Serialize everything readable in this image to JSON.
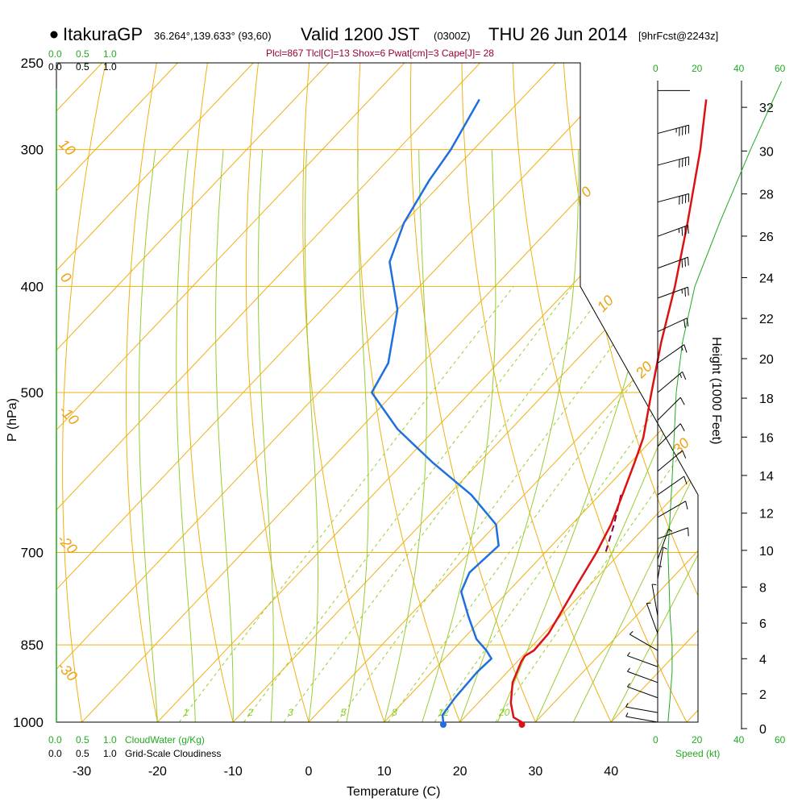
{
  "header": {
    "station": "ItakuraGP",
    "coords": "36.264°,139.633° (93,60)",
    "valid": "Valid 1200 JST",
    "zulu": "(0300Z)",
    "date": "THU 26 Jun 2014",
    "forecast": "[9hrFcst@2243z]",
    "diagnostics": "Plcl=867 Tlcl[C]=13 Shox=6 Pwat[cm]=3 Cape[J]= 28"
  },
  "scales": {
    "cloudwater_ticks": [
      "0.0",
      "0.5",
      "1.0"
    ],
    "cloudiness_ticks": [
      "0.0",
      "0.5",
      "1.0"
    ],
    "cloudwater_label": "CloudWater (g/Kg)",
    "cloudiness_label": "Grid-Scale Cloudiness",
    "speed_ticks": [
      "0",
      "20",
      "40",
      "60"
    ],
    "speed_label": "Speed (kt)"
  },
  "colors": {
    "isotherm": "#f0b010",
    "dry_adiabat": "#f0b010",
    "moist_adiabat": "#99cc33",
    "mixing_ratio": "#99cc33",
    "temperature": "#dd1111",
    "dewpoint": "#1f6fdd",
    "parcel": "#880044",
    "speed": "#22aa22"
  },
  "chart_data": {
    "type": "skew-t",
    "xlabel": "Temperature (C)",
    "ylabel": "P (hPa)",
    "y2label": "Height (1000 Feet)",
    "pressure_ticks": [
      250,
      300,
      400,
      500,
      700,
      850,
      1000
    ],
    "temp_ticks": [
      -30,
      -20,
      -10,
      0,
      10,
      20,
      30,
      40
    ],
    "height_ticks": [
      0,
      2,
      4,
      6,
      8,
      10,
      12,
      14,
      16,
      18,
      20,
      22,
      24,
      26,
      28,
      30,
      32
    ],
    "isotherm_labels": [
      {
        "text": "10",
        "t": -40,
        "p": 300
      },
      {
        "text": "0",
        "t": -40,
        "p": 400
      },
      {
        "text": "-10",
        "t": -40,
        "p": 520
      },
      {
        "text": "-20",
        "t": -40,
        "p": 680
      },
      {
        "text": "-30",
        "t": -40,
        "p": 880
      }
    ],
    "right_temp_labels": [
      "0",
      "10",
      "20",
      "30"
    ],
    "mixing_ratio_labels": [
      "1",
      "2",
      "3",
      "5",
      "8",
      "12",
      "20"
    ],
    "mixing_ratios": [
      1,
      2,
      3,
      5,
      8,
      12,
      20
    ],
    "temperature": [
      {
        "p": 1000,
        "t": 28.2
      },
      {
        "p": 990,
        "t": 26.5
      },
      {
        "p": 960,
        "t": 24.3
      },
      {
        "p": 920,
        "t": 22.0
      },
      {
        "p": 880,
        "t": 20.5
      },
      {
        "p": 870,
        "t": 20.3
      },
      {
        "p": 860,
        "t": 20.8
      },
      {
        "p": 830,
        "t": 20.6
      },
      {
        "p": 800,
        "t": 19.8
      },
      {
        "p": 750,
        "t": 18.3
      },
      {
        "p": 700,
        "t": 16.8
      },
      {
        "p": 660,
        "t": 15.2
      },
      {
        "p": 620,
        "t": 13.0
      },
      {
        "p": 580,
        "t": 10.6
      },
      {
        "p": 550,
        "t": 8.6
      },
      {
        "p": 500,
        "t": 4.0
      },
      {
        "p": 450,
        "t": -1.0
      },
      {
        "p": 400,
        "t": -6.2
      },
      {
        "p": 350,
        "t": -12.5
      },
      {
        "p": 300,
        "t": -20.0
      },
      {
        "p": 270,
        "t": -25.5
      }
    ],
    "dewpoint": [
      {
        "p": 1000,
        "t": 17.8
      },
      {
        "p": 985,
        "t": 16.8
      },
      {
        "p": 950,
        "t": 16.3
      },
      {
        "p": 900,
        "t": 16.0
      },
      {
        "p": 875,
        "t": 16.2
      },
      {
        "p": 860,
        "t": 14.5
      },
      {
        "p": 840,
        "t": 11.8
      },
      {
        "p": 800,
        "t": 7.8
      },
      {
        "p": 760,
        "t": 3.8
      },
      {
        "p": 730,
        "t": 2.5
      },
      {
        "p": 690,
        "t": 3.0
      },
      {
        "p": 660,
        "t": 0.0
      },
      {
        "p": 620,
        "t": -7.0
      },
      {
        "p": 580,
        "t": -16.0
      },
      {
        "p": 540,
        "t": -25.0
      },
      {
        "p": 500,
        "t": -33.0
      },
      {
        "p": 470,
        "t": -34.5
      },
      {
        "p": 420,
        "t": -40.0
      },
      {
        "p": 380,
        "t": -47.0
      },
      {
        "p": 350,
        "t": -50.0
      },
      {
        "p": 320,
        "t": -52.0
      },
      {
        "p": 300,
        "t": -53.0
      },
      {
        "p": 270,
        "t": -55.5
      }
    ],
    "parcel": [
      {
        "p": 620,
        "t": 12.8
      },
      {
        "p": 660,
        "t": 15.6
      },
      {
        "p": 700,
        "t": 18.0
      }
    ],
    "surface_temp": 28.2,
    "surface_dewpoint": 17.8,
    "wind_speed_kt": [
      {
        "p": 1000,
        "s": 5
      },
      {
        "p": 950,
        "s": 6
      },
      {
        "p": 900,
        "s": 7
      },
      {
        "p": 850,
        "s": 7
      },
      {
        "p": 800,
        "s": 6
      },
      {
        "p": 700,
        "s": 5
      },
      {
        "p": 600,
        "s": 7
      },
      {
        "p": 500,
        "s": 9
      },
      {
        "p": 450,
        "s": 12
      },
      {
        "p": 400,
        "s": 18
      },
      {
        "p": 350,
        "s": 30
      },
      {
        "p": 300,
        "s": 45
      },
      {
        "p": 260,
        "s": 60
      }
    ],
    "wind_barbs": [
      {
        "p": 265,
        "dir": 270,
        "spd": 50
      },
      {
        "p": 290,
        "dir": 255,
        "spd": 45
      },
      {
        "p": 310,
        "dir": 255,
        "spd": 40
      },
      {
        "p": 335,
        "dir": 255,
        "spd": 40
      },
      {
        "p": 360,
        "dir": 250,
        "spd": 35
      },
      {
        "p": 385,
        "dir": 250,
        "spd": 30
      },
      {
        "p": 410,
        "dir": 250,
        "spd": 25
      },
      {
        "p": 440,
        "dir": 245,
        "spd": 20
      },
      {
        "p": 470,
        "dir": 235,
        "spd": 15
      },
      {
        "p": 500,
        "dir": 230,
        "spd": 15
      },
      {
        "p": 530,
        "dir": 225,
        "spd": 10
      },
      {
        "p": 560,
        "dir": 225,
        "spd": 10
      },
      {
        "p": 590,
        "dir": 230,
        "spd": 10
      },
      {
        "p": 620,
        "dir": 235,
        "spd": 10
      },
      {
        "p": 650,
        "dir": 240,
        "spd": 10
      },
      {
        "p": 680,
        "dir": 250,
        "spd": 10
      },
      {
        "p": 710,
        "dir": 200,
        "spd": 5
      },
      {
        "p": 740,
        "dir": 190,
        "spd": 5
      },
      {
        "p": 770,
        "dir": 180,
        "spd": 5
      },
      {
        "p": 800,
        "dir": 170,
        "spd": 5
      },
      {
        "p": 830,
        "dir": 160,
        "spd": 5
      },
      {
        "p": 860,
        "dir": 120,
        "spd": 5
      },
      {
        "p": 890,
        "dir": 110,
        "spd": 5
      },
      {
        "p": 920,
        "dir": 110,
        "spd": 5
      },
      {
        "p": 950,
        "dir": 110,
        "spd": 5
      },
      {
        "p": 980,
        "dir": 100,
        "spd": 5
      },
      {
        "p": 1000,
        "dir": 100,
        "spd": 5
      }
    ]
  }
}
